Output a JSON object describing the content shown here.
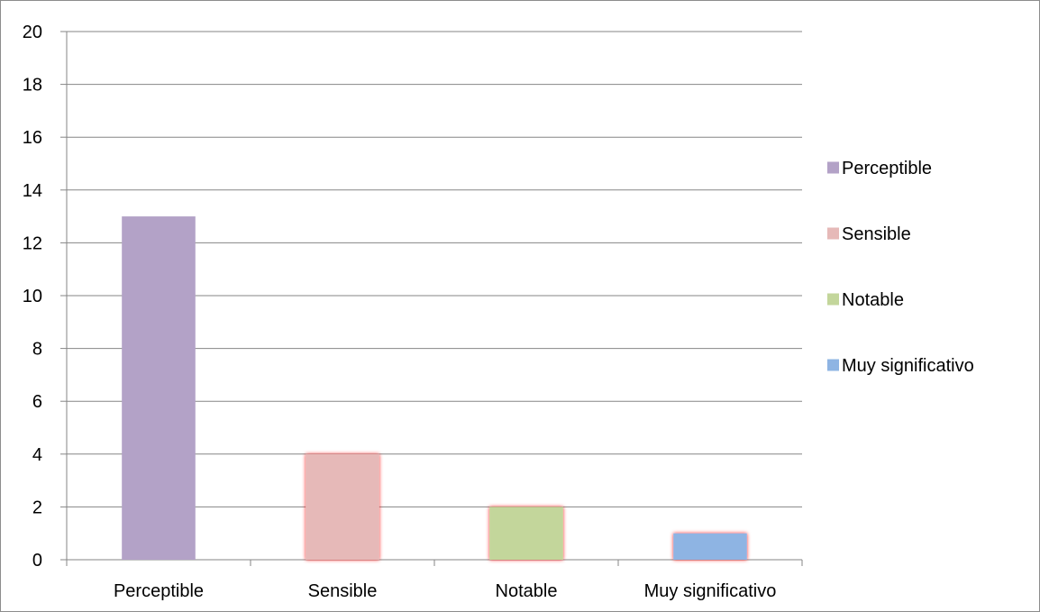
{
  "chart_data": {
    "type": "bar",
    "title": "",
    "xlabel": "",
    "ylabel": "",
    "categories": [
      "Perceptible",
      "Sensible",
      "Notable",
      "Muy significativo"
    ],
    "values": [
      13,
      4,
      2,
      1
    ],
    "colors": [
      "#b3a2c7",
      "#e6b9b8",
      "#c3d69b",
      "#8eb4e3"
    ],
    "ylim": [
      0,
      20
    ],
    "yticks": [
      0,
      2,
      4,
      6,
      8,
      10,
      12,
      14,
      16,
      18,
      20
    ],
    "grid": true,
    "legend": {
      "position": "right",
      "entries": [
        "Perceptible",
        "Sensible",
        "Notable",
        "Muy significativo"
      ]
    }
  }
}
